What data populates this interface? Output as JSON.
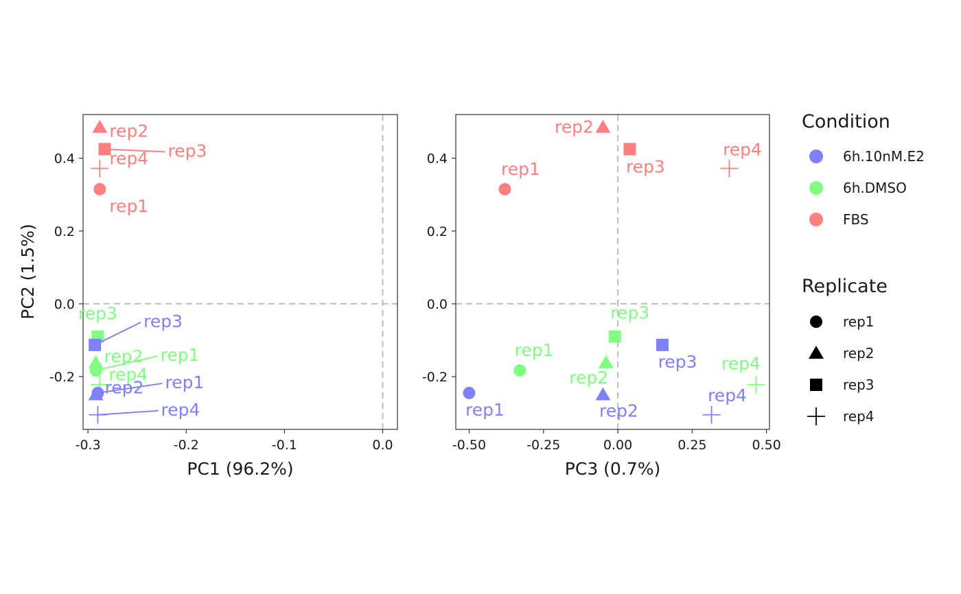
{
  "chart_data": [
    {
      "type": "scatter",
      "xlabel": "PC1 (96.2%)",
      "ylabel": "PC2 (1.5%)",
      "xlim": [
        -0.305,
        0.015
      ],
      "ylim": [
        -0.345,
        0.52
      ],
      "xticks": [
        "-0.3",
        "-0.2",
        "-0.1",
        "0.0"
      ],
      "yticks": [
        "0.4",
        "0.2",
        "0.0",
        "-0.2"
      ],
      "reference_lines": {
        "x": 0,
        "y": 0,
        "style": "dashed"
      },
      "points": [
        {
          "condition": "FBS",
          "replicate": "rep1",
          "label": "rep1",
          "x": -0.288,
          "y": 0.315
        },
        {
          "condition": "FBS",
          "replicate": "rep2",
          "label": "rep2",
          "x": -0.288,
          "y": 0.485
        },
        {
          "condition": "FBS",
          "replicate": "rep3",
          "label": "rep3",
          "x": -0.283,
          "y": 0.425
        },
        {
          "condition": "FBS",
          "replicate": "rep4",
          "label": "rep4",
          "x": -0.288,
          "y": 0.372
        },
        {
          "condition": "6h.DMSO",
          "replicate": "rep1",
          "label": "rep1",
          "x": -0.292,
          "y": -0.183
        },
        {
          "condition": "6h.DMSO",
          "replicate": "rep2",
          "label": "rep2",
          "x": -0.292,
          "y": -0.162
        },
        {
          "condition": "6h.DMSO",
          "replicate": "rep3",
          "label": "rep3",
          "x": -0.29,
          "y": -0.09
        },
        {
          "condition": "6h.DMSO",
          "replicate": "rep4",
          "label": "rep4",
          "x": -0.288,
          "y": -0.222
        },
        {
          "condition": "6h.10nM.E2",
          "replicate": "rep1",
          "label": "rep1",
          "x": -0.29,
          "y": -0.245
        },
        {
          "condition": "6h.10nM.E2",
          "replicate": "rep2",
          "label": "rep2",
          "x": -0.292,
          "y": -0.25
        },
        {
          "condition": "6h.10nM.E2",
          "replicate": "rep3",
          "label": "rep3",
          "x": -0.293,
          "y": -0.113
        },
        {
          "condition": "6h.10nM.E2",
          "replicate": "rep4",
          "label": "rep4",
          "x": -0.29,
          "y": -0.305
        }
      ]
    },
    {
      "type": "scatter",
      "xlabel": "PC3 (0.7%)",
      "ylabel": "",
      "xlim": [
        -0.545,
        0.51
      ],
      "ylim": [
        -0.345,
        0.52
      ],
      "xticks": [
        "-0.50",
        "-0.25",
        "0.00",
        "0.25",
        "0.50"
      ],
      "yticks": [
        "0.4",
        "0.2",
        "0.0",
        "-0.2"
      ],
      "reference_lines": {
        "x": 0,
        "y": 0,
        "style": "dashed"
      },
      "points": [
        {
          "condition": "FBS",
          "replicate": "rep1",
          "label": "rep1",
          "x": -0.38,
          "y": 0.315
        },
        {
          "condition": "FBS",
          "replicate": "rep2",
          "label": "rep2",
          "x": -0.05,
          "y": 0.485
        },
        {
          "condition": "FBS",
          "replicate": "rep3",
          "label": "rep3",
          "x": 0.04,
          "y": 0.425
        },
        {
          "condition": "FBS",
          "replicate": "rep4",
          "label": "rep4",
          "x": 0.375,
          "y": 0.372
        },
        {
          "condition": "6h.DMSO",
          "replicate": "rep1",
          "label": "rep1",
          "x": -0.33,
          "y": -0.183
        },
        {
          "condition": "6h.DMSO",
          "replicate": "rep2",
          "label": "rep2",
          "x": -0.04,
          "y": -0.162
        },
        {
          "condition": "6h.DMSO",
          "replicate": "rep3",
          "label": "rep3",
          "x": -0.01,
          "y": -0.09
        },
        {
          "condition": "6h.DMSO",
          "replicate": "rep4",
          "label": "rep4",
          "x": 0.465,
          "y": -0.222
        },
        {
          "condition": "6h.10nM.E2",
          "replicate": "rep1",
          "label": "rep1",
          "x": -0.5,
          "y": -0.245
        },
        {
          "condition": "6h.10nM.E2",
          "replicate": "rep2",
          "label": "rep2",
          "x": -0.05,
          "y": -0.25
        },
        {
          "condition": "6h.10nM.E2",
          "replicate": "rep3",
          "label": "rep3",
          "x": 0.15,
          "y": -0.113
        },
        {
          "condition": "6h.10nM.E2",
          "replicate": "rep4",
          "label": "rep4",
          "x": 0.315,
          "y": -0.305
        }
      ]
    }
  ],
  "legend": {
    "condition": {
      "title": "Condition",
      "items": [
        {
          "label": "6h.10nM.E2",
          "color": "#8080ff"
        },
        {
          "label": "6h.DMSO",
          "color": "#80ff80"
        },
        {
          "label": "FBS",
          "color": "#ff8080"
        }
      ]
    },
    "replicate": {
      "title": "Replicate",
      "items": [
        {
          "label": "rep1",
          "shape": "circle"
        },
        {
          "label": "rep2",
          "shape": "triangle"
        },
        {
          "label": "rep3",
          "shape": "square"
        },
        {
          "label": "rep4",
          "shape": "plus"
        }
      ]
    }
  }
}
